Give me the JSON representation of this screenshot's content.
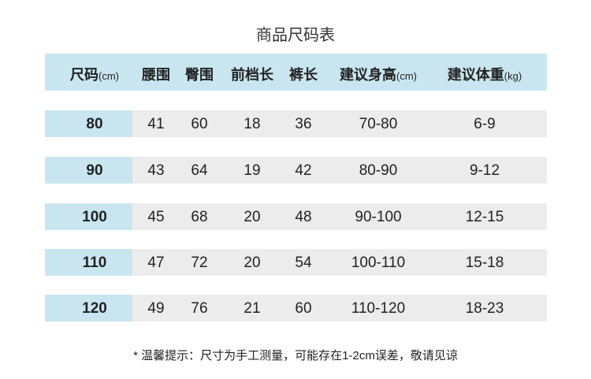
{
  "title": "商品尺码表",
  "colors": {
    "header_bg": "#c9e6f0",
    "size_cell_bg": "#c9e6f0",
    "row_bg": "#ececec"
  },
  "headers": [
    {
      "label": "尺码",
      "unit": "(cm)"
    },
    {
      "label": "腰围",
      "unit": ""
    },
    {
      "label": "臀围",
      "unit": ""
    },
    {
      "label": "前档长",
      "unit": ""
    },
    {
      "label": "裤长",
      "unit": ""
    },
    {
      "label": "建议身高",
      "unit": "(cm)"
    },
    {
      "label": "建议体重",
      "unit": "(kg)"
    }
  ],
  "rows": [
    [
      "80",
      "41",
      "60",
      "18",
      "36",
      "70-80",
      "6-9"
    ],
    [
      "90",
      "43",
      "64",
      "19",
      "42",
      "80-90",
      "9-12"
    ],
    [
      "100",
      "45",
      "68",
      "20",
      "48",
      "90-100",
      "12-15"
    ],
    [
      "110",
      "47",
      "72",
      "20",
      "54",
      "100-110",
      "15-18"
    ],
    [
      "120",
      "49",
      "76",
      "21",
      "60",
      "110-120",
      "18-23"
    ]
  ],
  "note": "* 温馨提示：尺寸为手工测量，可能存在1-2cm误差，敬请见谅"
}
